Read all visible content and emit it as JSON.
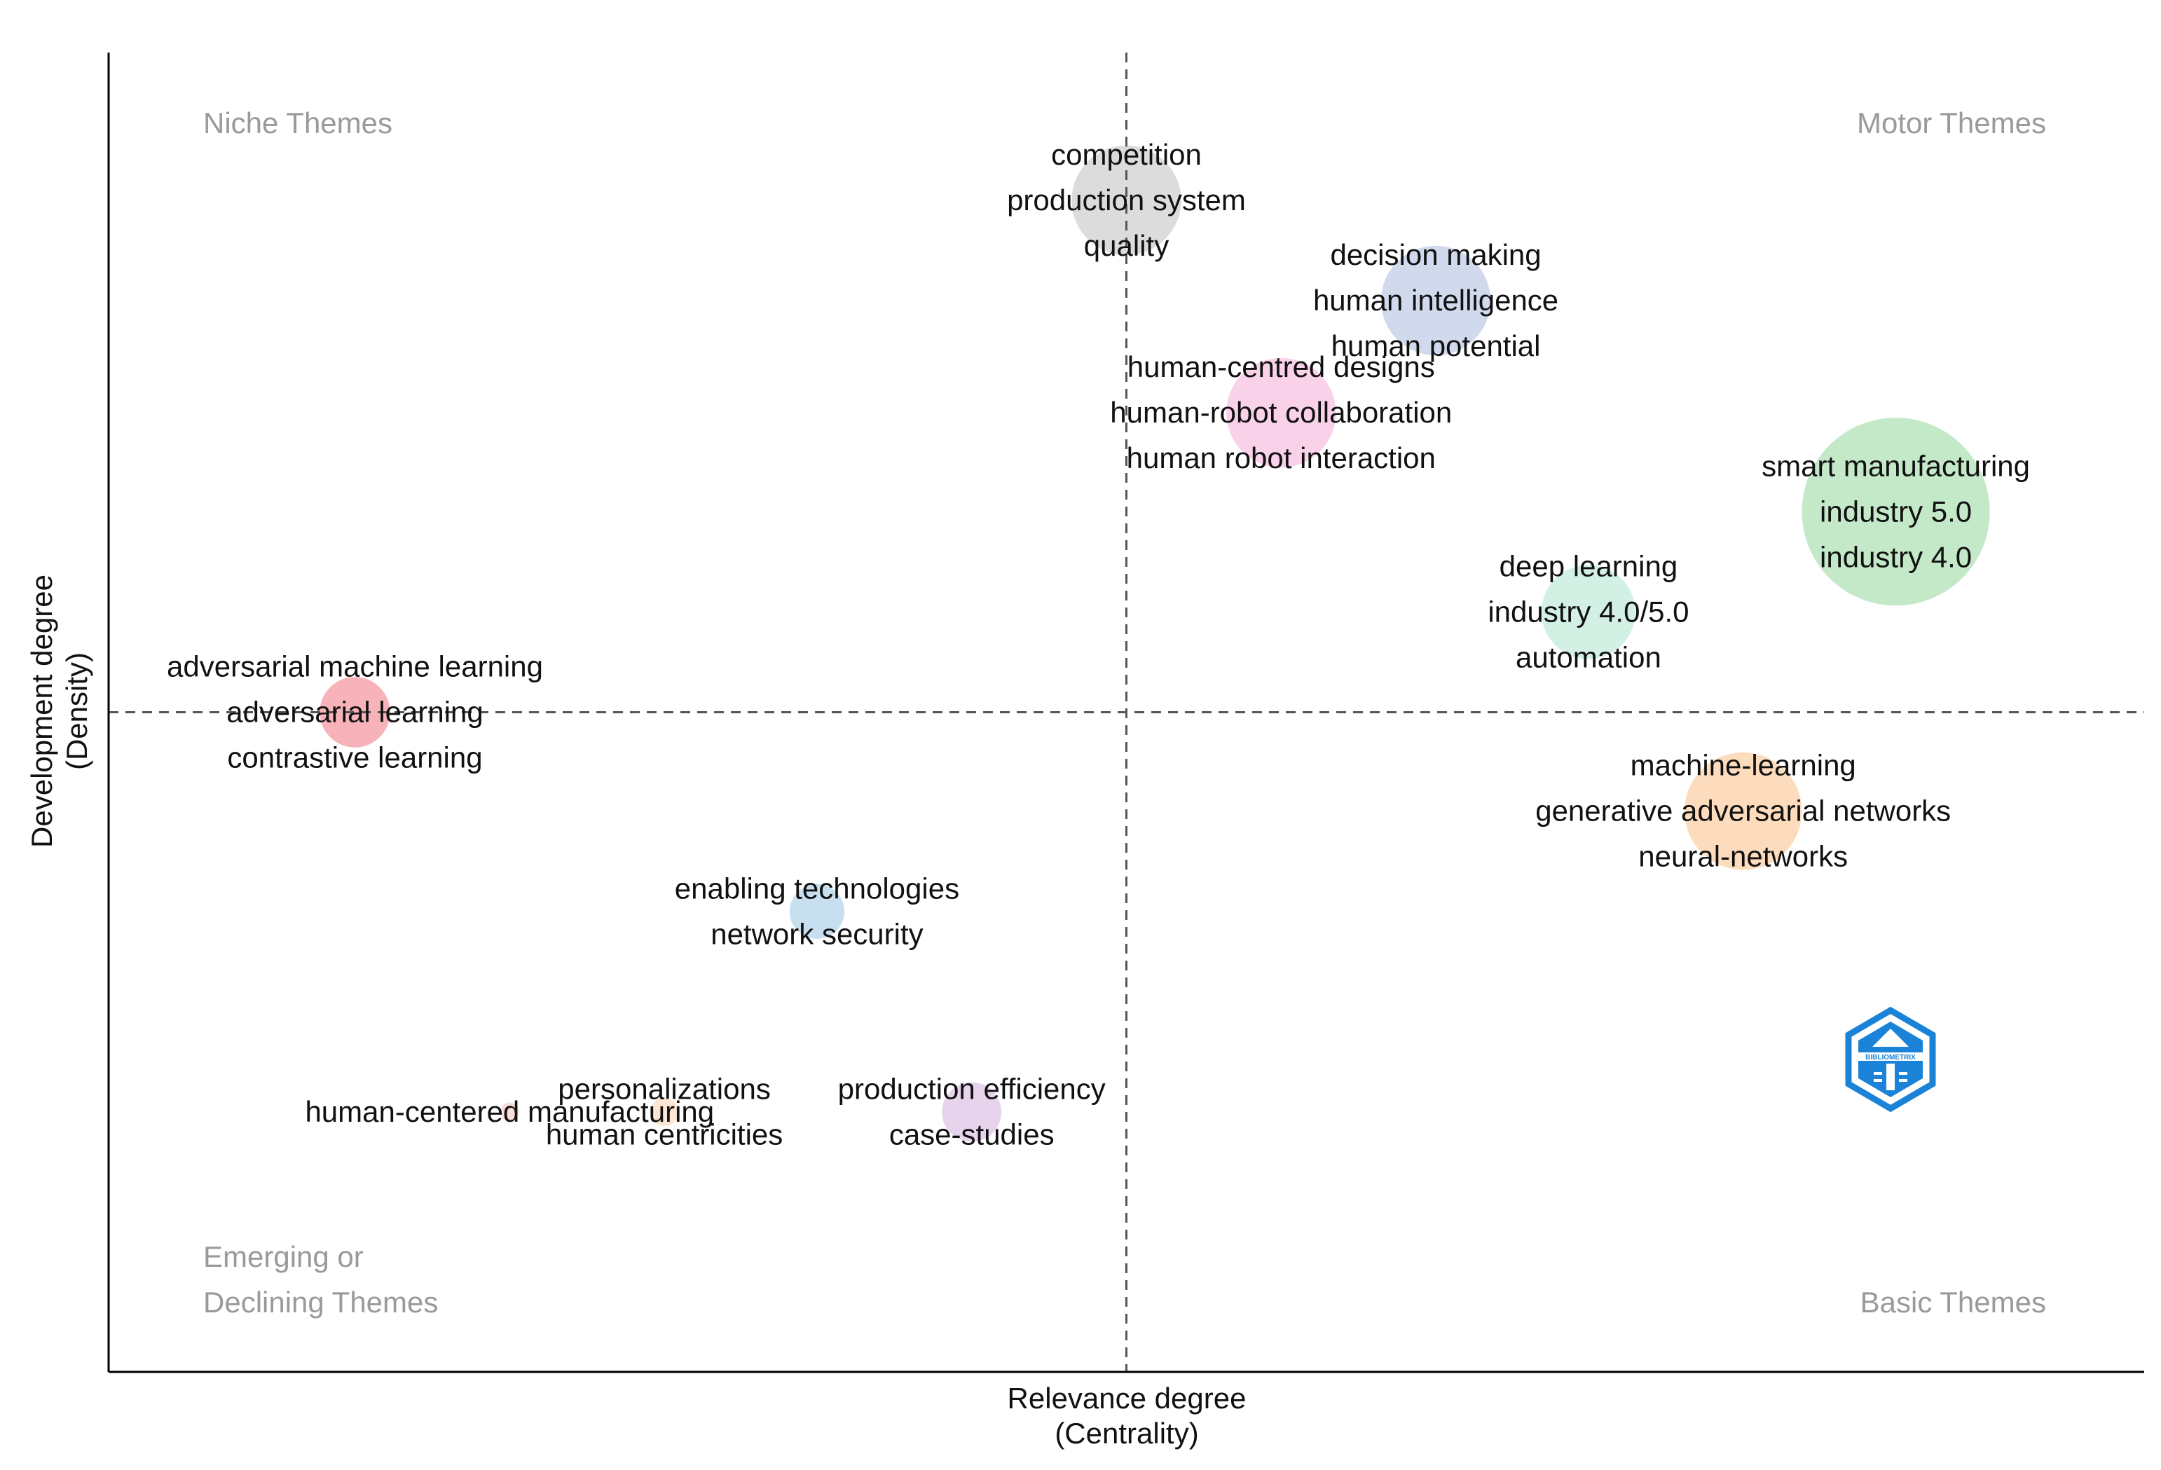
{
  "chart_data": {
    "type": "scatter",
    "title": "",
    "xlabel": "Relevance degree",
    "xlabel_sub": "(Centrality)",
    "ylabel": "Development degree",
    "ylabel_sub": "(Density)",
    "xlim": [
      0,
      1
    ],
    "ylim": [
      0,
      1
    ],
    "x_divider": 0.5,
    "y_divider": 0.5,
    "quadrants": {
      "niche": "Niche Themes",
      "motor": "Motor Themes",
      "emerging_1": "Emerging or",
      "emerging_2": "Declining Themes",
      "basic": "Basic Themes"
    },
    "clusters": [
      {
        "x": 0.5,
        "y": 0.888,
        "size": 0.07,
        "color": "#d3d3d3",
        "labels": [
          "competition",
          "production system",
          "quality"
        ]
      },
      {
        "x": 0.652,
        "y": 0.812,
        "size": 0.07,
        "color": "#c6cfe8",
        "labels": [
          "decision making",
          "human intelligence",
          "human potential"
        ]
      },
      {
        "x": 0.576,
        "y": 0.727,
        "size": 0.07,
        "color": "#f7c5e2",
        "labels": [
          "human-centred designs",
          "human-robot collaboration",
          "human robot interaction"
        ]
      },
      {
        "x": 0.878,
        "y": 0.652,
        "size": 0.12,
        "color": "#b5e3bb",
        "labels": [
          "smart manufacturing",
          "industry 5.0",
          "industry 4.0"
        ]
      },
      {
        "x": 0.727,
        "y": 0.576,
        "size": 0.06,
        "color": "#c8ecde",
        "labels": [
          "deep learning",
          "industry 4.0/5.0",
          "automation"
        ]
      },
      {
        "x": 0.121,
        "y": 0.5,
        "size": 0.045,
        "color": "#f5a0a8",
        "labels": [
          "adversarial machine learning",
          "adversarial learning",
          "contrastive learning"
        ]
      },
      {
        "x": 0.803,
        "y": 0.425,
        "size": 0.075,
        "color": "#fbd3ad",
        "labels": [
          "machine-learning",
          "generative adversarial networks",
          "neural-networks"
        ]
      },
      {
        "x": 0.348,
        "y": 0.349,
        "size": 0.035,
        "color": "#b9d7ea",
        "labels": [
          "enabling technologies",
          "network security"
        ]
      },
      {
        "x": 0.273,
        "y": 0.197,
        "size": 0.018,
        "color": "#fde0c8",
        "labels": [
          "personalizations",
          "human centricities"
        ]
      },
      {
        "x": 0.197,
        "y": 0.197,
        "size": 0.012,
        "color": "#f8d3d3",
        "labels": [
          "human-centered manufacturing"
        ]
      },
      {
        "x": 0.424,
        "y": 0.197,
        "size": 0.038,
        "color": "#e2c8e7",
        "labels": [
          "production efficiency",
          "case-studies"
        ]
      }
    ]
  },
  "logo": {
    "name": "bibliometrix-logo-icon",
    "text": "BIBLIOMETRIX"
  }
}
